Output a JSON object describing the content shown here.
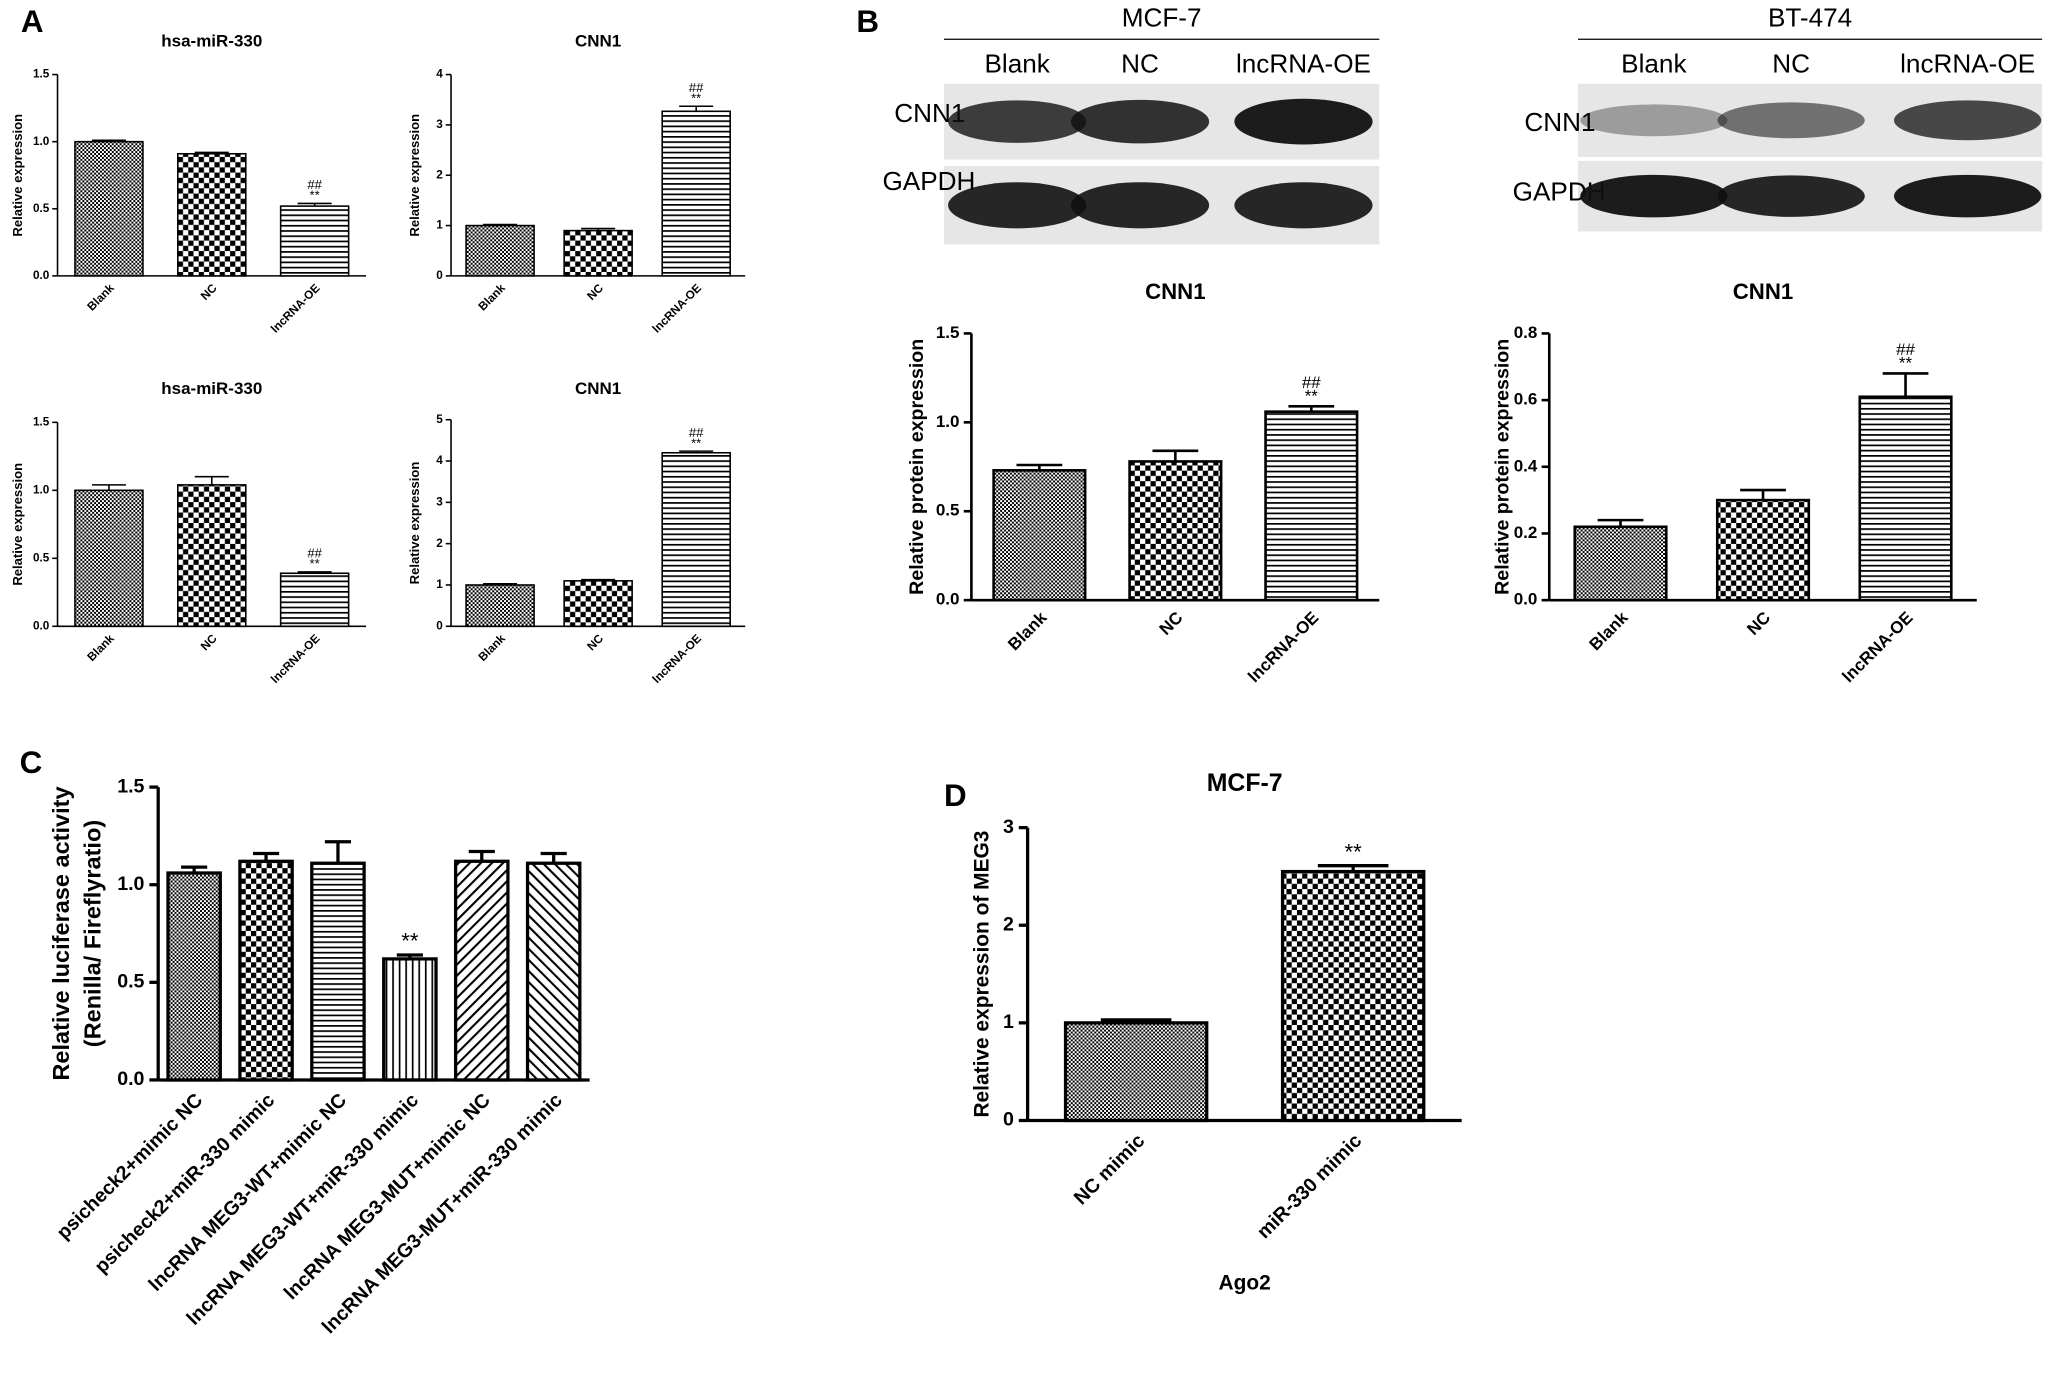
{
  "panel_labels": [
    "A",
    "B",
    "C",
    "D"
  ],
  "blots": [
    {
      "cell_line": "MCF-7",
      "lanes": [
        "Blank",
        "NC",
        "lncRNA-OE"
      ],
      "rows": [
        "CNN1",
        "GAPDH"
      ]
    },
    {
      "cell_line": "BT-474",
      "lanes": [
        "Blank",
        "NC",
        "lncRNA-OE"
      ],
      "rows": [
        "CNN1",
        "GAPDH"
      ]
    }
  ],
  "chart_data": [
    {
      "type": "bar",
      "title": "hsa-miR-330",
      "ylabel": [
        "Relative expression"
      ],
      "categories": [
        "Blank",
        "NC",
        "lncRNA-OE"
      ],
      "values": [
        1.0,
        0.91,
        0.52
      ],
      "errors": [
        0.01,
        0.01,
        0.02
      ],
      "patterns": [
        "dots",
        "checker",
        "hlines"
      ],
      "annotations": [
        {
          "x": "lncRNA-OE",
          "text": "##"
        },
        {
          "x": "lncRNA-OE",
          "text": "**"
        }
      ],
      "ylim": [
        0,
        1.5
      ],
      "yticks": [
        {
          "value": 0,
          "label": "0.0"
        },
        0.5,
        {
          "value": 1,
          "label": "1.0"
        },
        1.5
      ]
    },
    {
      "type": "bar",
      "title": "CNN1",
      "ylabel": [
        "Relative expression"
      ],
      "categories": [
        "Blank",
        "NC",
        "lncRNA-OE"
      ],
      "values": [
        1.0,
        0.9,
        3.27
      ],
      "errors": [
        0.02,
        0.04,
        0.1
      ],
      "patterns": [
        "dots",
        "checker",
        "hlines"
      ],
      "annotations": [
        {
          "x": "lncRNA-OE",
          "text": "##"
        },
        {
          "x": "lncRNA-OE",
          "text": "**"
        }
      ],
      "ylim": [
        0,
        4
      ],
      "yticks": [
        0,
        1,
        2,
        3,
        4
      ]
    },
    {
      "type": "bar",
      "title": "hsa-miR-330",
      "ylabel": [
        "Relative expression"
      ],
      "categories": [
        "Blank",
        "NC",
        "lncRNA-OE"
      ],
      "values": [
        1.0,
        1.04,
        0.39
      ],
      "errors": [
        0.04,
        0.06,
        0.01
      ],
      "patterns": [
        "dots",
        "checker",
        "hlines"
      ],
      "annotations": [
        {
          "x": "lncRNA-OE",
          "text": "##"
        },
        {
          "x": "lncRNA-OE",
          "text": "**"
        }
      ],
      "ylim": [
        0,
        1.5
      ],
      "yticks": [
        {
          "value": 0,
          "label": "0.0"
        },
        0.5,
        {
          "value": 1,
          "label": "1.0"
        },
        1.5
      ]
    },
    {
      "type": "bar",
      "title": "CNN1",
      "ylabel": [
        "Relative expression"
      ],
      "categories": [
        "Blank",
        "NC",
        "lncRNA-OE"
      ],
      "values": [
        1.0,
        1.1,
        4.2
      ],
      "errors": [
        0.03,
        0.03,
        0.04
      ],
      "patterns": [
        "dots",
        "checker",
        "hlines"
      ],
      "annotations": [
        {
          "x": "lncRNA-OE",
          "text": "##"
        },
        {
          "x": "lncRNA-OE",
          "text": "**"
        }
      ],
      "ylim": [
        0,
        5
      ],
      "yticks": [
        0,
        1,
        2,
        3,
        4,
        5
      ]
    },
    {
      "type": "bar",
      "title": "CNN1",
      "ylabel": [
        "Relative protein expression"
      ],
      "categories": [
        "Blank",
        "NC",
        "lncRNA-OE"
      ],
      "values": [
        0.73,
        0.78,
        1.06
      ],
      "errors": [
        0.03,
        0.06,
        0.03
      ],
      "patterns": [
        "dots",
        "checker",
        "hlines"
      ],
      "annotations": [
        {
          "x": "lncRNA-OE",
          "text": "##"
        },
        {
          "x": "lncRNA-OE",
          "text": "**"
        }
      ],
      "ylim": [
        0,
        1.5
      ],
      "yticks": [
        {
          "value": 0,
          "label": "0.0"
        },
        0.5,
        {
          "value": 1,
          "label": "1.0"
        },
        1.5
      ]
    },
    {
      "type": "bar",
      "title": "CNN1",
      "ylabel": [
        "Relative protein expression"
      ],
      "categories": [
        "Blank",
        "NC",
        "lncRNA-OE"
      ],
      "values": [
        0.22,
        0.3,
        0.61
      ],
      "errors": [
        0.02,
        0.03,
        0.07
      ],
      "patterns": [
        "dots",
        "checker",
        "hlines"
      ],
      "annotations": [
        {
          "x": "lncRNA-OE",
          "text": "##"
        },
        {
          "x": "lncRNA-OE",
          "text": "**"
        }
      ],
      "ylim": [
        0,
        0.8
      ],
      "yticks": [
        {
          "value": 0,
          "label": "0.0"
        },
        0.2,
        0.4,
        0.6,
        0.8
      ]
    },
    {
      "type": "bar",
      "ylabel": [
        "Relative luciferase activity",
        "(Renilla/ Fireflyratio)"
      ],
      "categories": [
        "psicheck2+mimic NC",
        "psicheck2+miR-330 mimic",
        "lncRNA MEG3-WT+mimic NC",
        "lncRNA MEG3-WT+miR-330 mimic",
        "lncRNA MEG3-MUT+mimic NC",
        "lncRNA MEG3-MUT+miR-330 mimic"
      ],
      "values": [
        1.06,
        1.12,
        1.11,
        0.62,
        1.12,
        1.11
      ],
      "errors": [
        0.03,
        0.04,
        0.11,
        0.02,
        0.05,
        0.05
      ],
      "patterns": [
        "dots",
        "checker",
        "hlines",
        "vlines",
        "diagR",
        "diagL"
      ],
      "annotations": [
        {
          "x": "lncRNA MEG3-WT+miR-330 mimic",
          "text": "**"
        }
      ],
      "ylim": [
        0,
        1.5
      ],
      "yticks": [
        {
          "value": 0,
          "label": "0.0"
        },
        0.5,
        {
          "value": 1,
          "label": "1.0"
        },
        1.5
      ]
    },
    {
      "type": "bar",
      "title": "MCF-7",
      "ylabel": [
        "Relative expression of MEG3"
      ],
      "xlabel": "Ago2",
      "categories": [
        "NC mimic",
        "miR-330 mimic"
      ],
      "values": [
        1.0,
        2.55
      ],
      "errors": [
        0.03,
        0.06
      ],
      "patterns": [
        "dots",
        "checker"
      ],
      "annotations": [
        {
          "x": "miR-330 mimic",
          "text": "**"
        }
      ],
      "ylim": [
        0,
        3
      ],
      "yticks": [
        0,
        1,
        2,
        3
      ]
    }
  ]
}
